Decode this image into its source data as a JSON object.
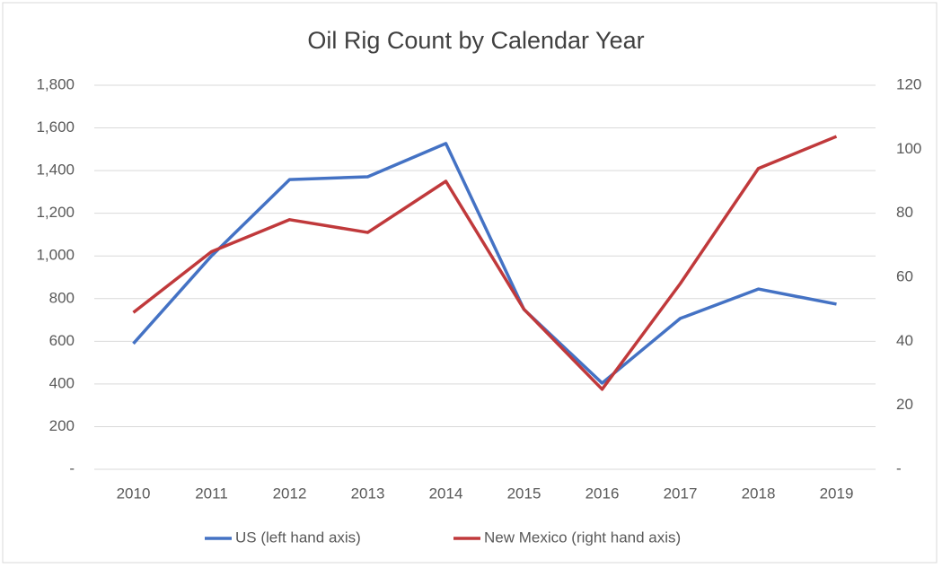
{
  "chart_data": {
    "type": "line",
    "title": "Oil Rig Count by Calendar Year",
    "categories": [
      "2010",
      "2011",
      "2012",
      "2013",
      "2014",
      "2015",
      "2016",
      "2017",
      "2018",
      "2019"
    ],
    "series": [
      {
        "name": "US (left hand axis)",
        "color": "#4472c4",
        "values": [
          589,
          1000,
          1358,
          1371,
          1527,
          749,
          404,
          707,
          845,
          774
        ]
      },
      {
        "name": "New Mexico (right hand axis)",
        "color": "#c0393b",
        "axis": "y2",
        "values": [
          49,
          68,
          78,
          74,
          90,
          50,
          25,
          58,
          94,
          104
        ]
      }
    ],
    "ylim": [
      0,
      1800
    ],
    "yticks": [
      {
        "value": 0,
        "label": "-"
      },
      {
        "value": 200,
        "label": "200"
      },
      {
        "value": 400,
        "label": "400"
      },
      {
        "value": 600,
        "label": "600"
      },
      {
        "value": 800,
        "label": "800"
      },
      {
        "value": 1000,
        "label": "1,000"
      },
      {
        "value": 1200,
        "label": "1,200"
      },
      {
        "value": 1400,
        "label": "1,400"
      },
      {
        "value": 1600,
        "label": "1,600"
      },
      {
        "value": 1800,
        "label": "1,800"
      }
    ],
    "y2lim": [
      0,
      120
    ],
    "y2ticks": [
      {
        "value": 0,
        "label": "-"
      },
      20,
      40,
      60,
      80,
      100,
      120
    ],
    "grid": true,
    "legend": "bottom"
  }
}
